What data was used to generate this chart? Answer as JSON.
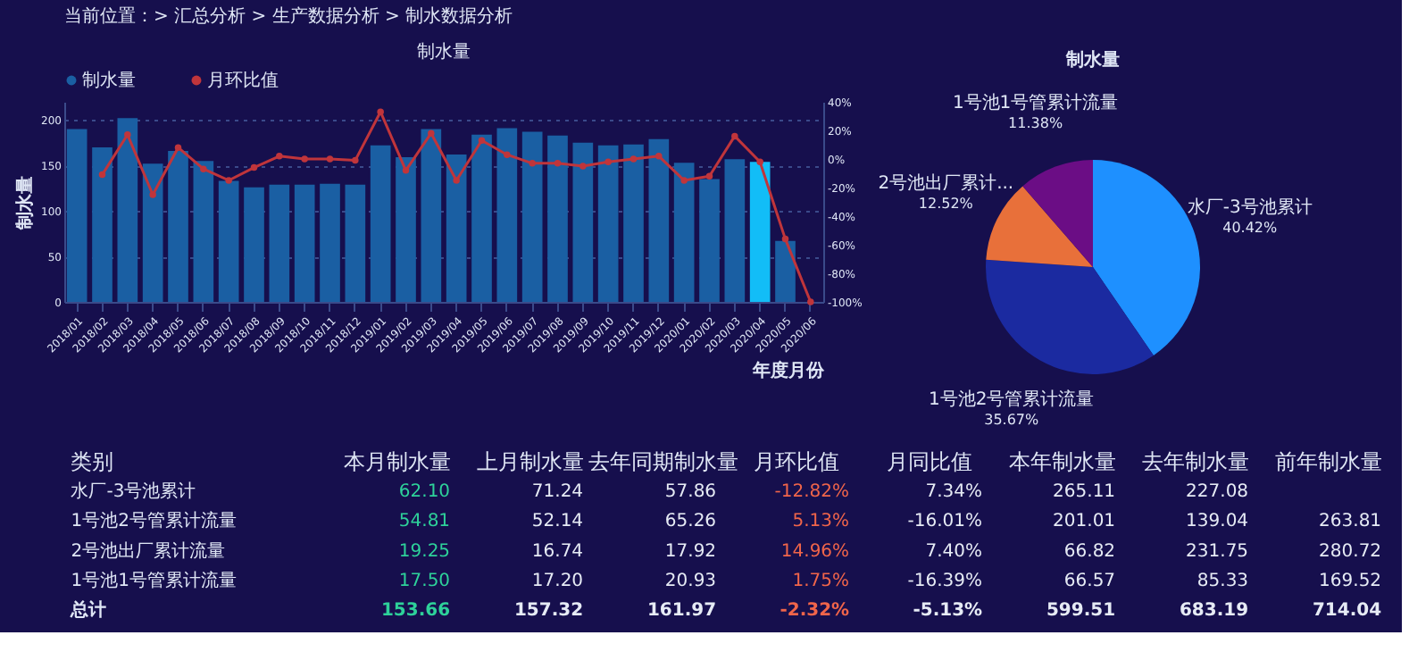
{
  "chart_data": [
    {
      "type": "bar",
      "title": "制水量",
      "xlabel": "年度月份",
      "ylabel": "制水量",
      "annotations": [
        "当前位置：>  汇总分析 >  生产数据分析 >  制水数据分析"
      ],
      "categories": [
        "2018/01",
        "2018/02",
        "2018/03",
        "2018/04",
        "2018/05",
        "2018/06",
        "2018/07",
        "2018/08",
        "2018/09",
        "2018/10",
        "2018/11",
        "2018/12",
        "2019/01",
        "2019/02",
        "2019/03",
        "2019/04",
        "2019/05",
        "2019/06",
        "2019/07",
        "2019/08",
        "2019/09",
        "2019/10",
        "2019/11",
        "2019/12",
        "2020/01",
        "2020/02",
        "2020/03",
        "2020/04",
        "2020/05",
        "2020/06"
      ],
      "series": [
        {
          "name": "制水量",
          "type": "bar",
          "color": "#1a5fa3",
          "colors": [
            "#1a5fa3",
            "#1a5fa3",
            "#1a5fa3",
            "#1a5fa3",
            "#1a5fa3",
            "#1a5fa3",
            "#1a5fa3",
            "#1a5fa3",
            "#1a5fa3",
            "#1a5fa3",
            "#1a5fa3",
            "#1a5fa3",
            "#1a5fa3",
            "#1a5fa3",
            "#1a5fa3",
            "#1a5fa3",
            "#1a5fa3",
            "#1a5fa3",
            "#1a5fa3",
            "#1a5fa3",
            "#1a5fa3",
            "#1a5fa3",
            "#1a5fa3",
            "#1a5fa3",
            "#1a5fa3",
            "#1a5fa3",
            "#1a5fa3",
            "#12bdf7",
            "#1a5fa3",
            "#1a5fa3"
          ],
          "values": [
            190,
            170,
            202,
            152,
            166,
            155,
            133,
            126,
            129,
            129,
            130,
            129,
            172,
            159,
            190,
            162,
            184,
            191,
            187,
            183,
            175,
            172,
            173,
            179,
            153,
            135,
            157,
            154,
            67,
            null
          ]
        },
        {
          "name": "月环比值",
          "type": "line",
          "axis": "y2",
          "color": "#c0353b",
          "values": [
            null,
            -11,
            17,
            -25,
            8,
            -7,
            -15,
            -6,
            2,
            0,
            0,
            -1,
            33,
            -8,
            18,
            -15,
            13,
            3,
            -3,
            -3,
            -5,
            -2,
            0,
            2,
            -15,
            -12,
            16,
            -2,
            -56,
            -100
          ]
        }
      ],
      "ylim": [
        0,
        220
      ],
      "yticks": [
        0,
        50,
        100,
        150,
        200
      ],
      "y2lim": [
        -100,
        40
      ],
      "y2ticks": [
        {
          "value": -100,
          "label": "-100%"
        },
        {
          "value": -80,
          "label": "-80%"
        },
        {
          "value": -60,
          "label": "-60%"
        },
        {
          "value": -40,
          "label": "-40%"
        },
        {
          "value": -20,
          "label": "-20%"
        },
        {
          "value": 0,
          "label": "0%"
        },
        {
          "value": 20,
          "label": "20%"
        },
        {
          "value": 40,
          "label": "40%"
        }
      ],
      "grid": "y",
      "legend": "top left",
      "marker": "circle"
    },
    {
      "type": "pie",
      "title": "制水量",
      "categories": [
        "水厂-3号池累计",
        "1号池2号管累计流量",
        "2号池出厂累计...",
        "1号池1号管累计流量"
      ],
      "values": [
        40.42,
        35.67,
        12.52,
        11.38
      ],
      "value_labels": [
        "40.42%",
        "35.67%",
        "12.52%",
        "11.38%"
      ],
      "colors": [
        "#1e90ff",
        "#1b2aa0",
        "#e8703a",
        "#6b0d85"
      ],
      "data_labels": true
    },
    {
      "type": "other",
      "categories": [
        "类别",
        "本月制水量",
        "上月制水量",
        "去年同期制水量",
        "月环比值",
        "月同比值",
        "本年制水量",
        "去年制水量",
        "前年制水量"
      ],
      "y_categories": [
        "水厂-3号池累计",
        "1号池2号管累计流量",
        "2号池出厂累计流量",
        "1号池1号管累计流量",
        "总计"
      ],
      "cell_labels": [
        [
          "62.10",
          "71.24",
          "57.86",
          "-12.82%",
          "7.34%",
          "265.11",
          "227.08",
          null
        ],
        [
          "54.81",
          "52.14",
          "65.26",
          "5.13%",
          "-16.01%",
          "201.01",
          "139.04",
          "263.81"
        ],
        [
          "19.25",
          "16.74",
          "17.92",
          "14.96%",
          "7.40%",
          "66.82",
          "231.75",
          "280.72"
        ],
        [
          "17.50",
          "17.20",
          "20.93",
          "1.75%",
          "-16.39%",
          "66.57",
          "85.33",
          "169.52"
        ],
        [
          "153.66",
          "157.32",
          "161.97",
          "-2.32%",
          "-5.13%",
          "599.51",
          "683.19",
          "714.04"
        ]
      ],
      "colors": [
        "#2ed19a",
        "#e6ebf5",
        "#e6ebf5",
        "#f0654a",
        "#e6ebf5",
        "#e6ebf5",
        "#e6ebf5",
        "#e6ebf5"
      ]
    }
  ]
}
